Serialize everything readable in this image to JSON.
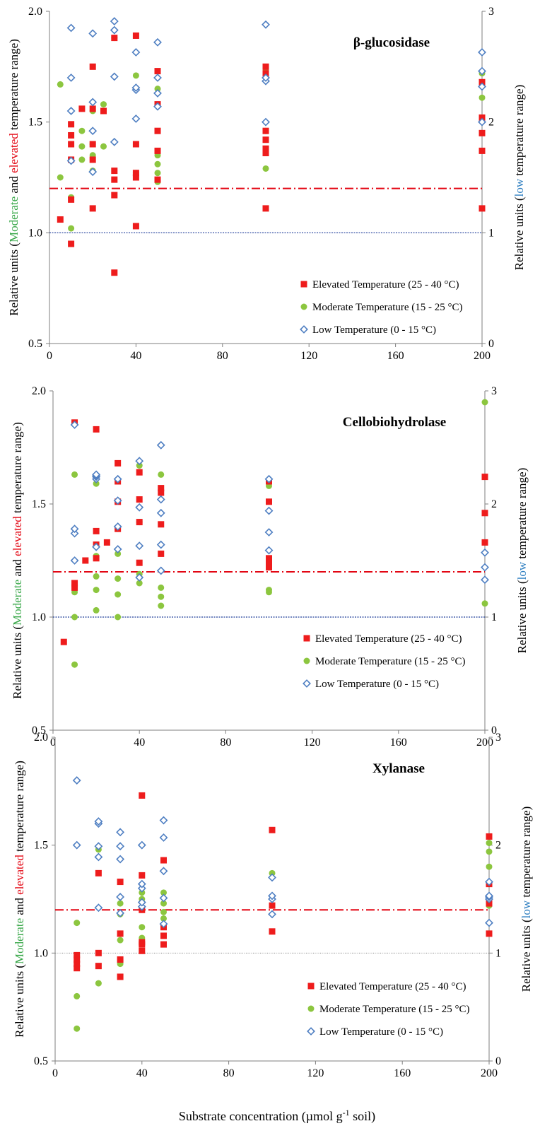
{
  "figure": {
    "xlabel": "Substrate concentration (µmol g⁻¹ soil)",
    "xlabel_main": "Substrate concentration (µmol g",
    "xlabel_sup": "-1",
    "xlabel_end": " soil)"
  },
  "colors": {
    "elevated": "#ee1c1c",
    "moderate": "#8cc63f",
    "low": "#4f7fc2",
    "threshold_line": "#e30613",
    "baseline_blue": "#1f3d99",
    "baseline_gray": "#888888"
  },
  "chart_data": [
    {
      "type": "scatter",
      "title": "β-glucosidase",
      "ylabel_left": [
        "Relative units (",
        "Moderate",
        " and ",
        "elevated",
        " temperature range)"
      ],
      "ylabel_right": [
        "Relative units (",
        "low",
        " temperature range)"
      ],
      "xlim": [
        0,
        200
      ],
      "ylim_left": [
        0.5,
        2.0
      ],
      "ylim_right": [
        0,
        3
      ],
      "x_ticks": [
        "0",
        "40",
        "80",
        "120",
        "160",
        "200"
      ],
      "y_ticks_left": [
        "0.5",
        "1.0",
        "1.5",
        "2.0"
      ],
      "y_ticks_right": [
        "0",
        "1",
        "2",
        "3"
      ],
      "threshold": 1.2,
      "baseline": 1.0,
      "baseline_style": "blue",
      "legend": [
        "Elevated Temperature  (25 - 40 °C)",
        "Moderate Temperature  (15 - 25 °C)",
        "Low Temperature (0 - 15 °C)"
      ],
      "legend_position": "bottom-right",
      "series": [
        {
          "key": "elevated",
          "axis": "left",
          "x": [
            5,
            10,
            10,
            10,
            10,
            10,
            10,
            15,
            20,
            20,
            20,
            20,
            20,
            25,
            30,
            30,
            30,
            30,
            30,
            40,
            40,
            40,
            40,
            40,
            50,
            50,
            50,
            50,
            50,
            100,
            100,
            100,
            100,
            100,
            100,
            100,
            200,
            200,
            200,
            200,
            200
          ],
          "y": [
            1.06,
            0.95,
            1.15,
            1.33,
            1.4,
            1.44,
            1.49,
            1.56,
            1.11,
            1.33,
            1.4,
            1.56,
            1.75,
            1.55,
            0.82,
            1.17,
            1.24,
            1.28,
            1.88,
            1.03,
            1.25,
            1.27,
            1.4,
            1.89,
            1.24,
            1.37,
            1.46,
            1.58,
            1.73,
            1.11,
            1.36,
            1.38,
            1.42,
            1.46,
            1.72,
            1.75,
            1.11,
            1.37,
            1.45,
            1.52,
            1.68
          ]
        },
        {
          "key": "moderate",
          "axis": "left",
          "x": [
            5,
            5,
            10,
            10,
            15,
            15,
            15,
            20,
            20,
            20,
            20,
            25,
            25,
            30,
            40,
            40,
            40,
            50,
            50,
            50,
            50,
            50,
            100,
            100,
            100,
            200,
            200
          ],
          "y": [
            1.25,
            1.67,
            1.02,
            1.16,
            1.33,
            1.39,
            1.46,
            1.28,
            1.35,
            1.4,
            1.55,
            1.39,
            1.58,
            1.88,
            1.27,
            1.65,
            1.71,
            1.23,
            1.27,
            1.31,
            1.35,
            1.65,
            1.29,
            1.46,
            1.73,
            1.61,
            1.72
          ]
        },
        {
          "key": "low",
          "axis": "right",
          "x": [
            10,
            10,
            10,
            10,
            20,
            20,
            20,
            20,
            30,
            30,
            30,
            30,
            40,
            40,
            40,
            40,
            50,
            50,
            50,
            50,
            100,
            100,
            100,
            100,
            200,
            200,
            200,
            200
          ],
          "y": [
            1.65,
            2.1,
            2.4,
            2.85,
            1.55,
            1.92,
            2.18,
            2.8,
            1.82,
            2.41,
            2.83,
            2.91,
            2.03,
            2.29,
            2.31,
            2.63,
            2.14,
            2.26,
            2.4,
            2.72,
            2.0,
            2.37,
            2.4,
            2.88,
            2.0,
            2.32,
            2.46,
            2.63
          ]
        }
      ]
    },
    {
      "type": "scatter",
      "title": "Cellobiohydrolase",
      "ylabel_left": [
        "Relative units (",
        "Moderate",
        " and ",
        "elevated",
        " temperature range)"
      ],
      "ylabel_right": [
        "Relative units (",
        "low",
        " temperature range)"
      ],
      "xlim": [
        0,
        200
      ],
      "ylim_left": [
        0.5,
        2.0
      ],
      "ylim_right": [
        0,
        3
      ],
      "x_ticks": [
        "0",
        "40",
        "80",
        "120",
        "160",
        "200"
      ],
      "y_ticks_left": [
        "0.5",
        "1.0",
        "1.5",
        "2.0"
      ],
      "y_ticks_right": [
        "0",
        "1",
        "2",
        "3"
      ],
      "threshold": 1.2,
      "baseline": 1.0,
      "baseline_style": "blue",
      "legend": [
        "Elevated Temperature  (25 - 40 °C)",
        "Moderate Temperature  (15 - 25 °C)",
        "Low Temperature (0 - 15 °C)"
      ],
      "legend_position": "bottom-right",
      "series": [
        {
          "key": "elevated",
          "axis": "left",
          "x": [
            5,
            10,
            10,
            10,
            15,
            20,
            20,
            20,
            20,
            25,
            30,
            30,
            30,
            30,
            40,
            40,
            40,
            40,
            50,
            50,
            50,
            50,
            100,
            100,
            100,
            100,
            100,
            100,
            200,
            200,
            200
          ],
          "y": [
            0.89,
            1.13,
            1.15,
            1.86,
            1.25,
            1.26,
            1.32,
            1.38,
            1.83,
            1.33,
            1.39,
            1.51,
            1.6,
            1.68,
            1.24,
            1.42,
            1.52,
            1.64,
            1.28,
            1.41,
            1.55,
            1.57,
            1.22,
            1.24,
            1.25,
            1.26,
            1.51,
            1.6,
            1.33,
            1.46,
            1.62
          ]
        },
        {
          "key": "moderate",
          "axis": "left",
          "x": [
            10,
            10,
            10,
            10,
            20,
            20,
            20,
            20,
            20,
            30,
            30,
            30,
            30,
            40,
            40,
            40,
            40,
            50,
            50,
            50,
            50,
            100,
            100,
            100,
            200,
            200
          ],
          "y": [
            0.79,
            1.0,
            1.11,
            1.63,
            1.03,
            1.12,
            1.18,
            1.27,
            1.59,
            1.0,
            1.1,
            1.17,
            1.28,
            1.15,
            1.19,
            1.42,
            1.67,
            1.05,
            1.09,
            1.13,
            1.63,
            1.11,
            1.12,
            1.58,
            1.06,
            1.95
          ]
        },
        {
          "key": "low",
          "axis": "right",
          "x": [
            10,
            10,
            10,
            10,
            20,
            20,
            20,
            20,
            20,
            30,
            30,
            30,
            30,
            40,
            40,
            40,
            40,
            50,
            50,
            50,
            50,
            50,
            100,
            100,
            100,
            100,
            200,
            200,
            200
          ],
          "y": [
            1.5,
            1.74,
            1.78,
            2.7,
            1.62,
            2.22,
            2.24,
            2.25,
            2.26,
            1.6,
            1.8,
            2.03,
            2.22,
            1.35,
            1.63,
            1.97,
            2.38,
            1.41,
            1.64,
            1.92,
            2.04,
            2.52,
            1.59,
            1.75,
            1.94,
            2.22,
            1.33,
            1.44,
            1.57
          ]
        }
      ]
    },
    {
      "type": "scatter",
      "title": "Xylanase",
      "ylabel_left": [
        "Relative units (",
        "Moderate",
        " and ",
        "elevated",
        " temperature range)"
      ],
      "ylabel_right": [
        "Relative units (",
        "low",
        "  temperature range)"
      ],
      "xlim": [
        0,
        200
      ],
      "ylim_left": [
        0.5,
        2.0
      ],
      "ylim_right": [
        0,
        3
      ],
      "x_ticks": [
        "0",
        "40",
        "80",
        "120",
        "160",
        "200"
      ],
      "y_ticks_left": [
        "0.5",
        "1.0",
        "1.5",
        "2.0"
      ],
      "y_ticks_right": [
        "0",
        "1",
        "2",
        "3"
      ],
      "threshold": 1.2,
      "baseline": 1.0,
      "baseline_style": "gray",
      "legend": [
        "Elevated Temperature  (25 - 40 °C)",
        "Moderate Temperature  (15 - 25 °C)",
        "Low Temperature (0 - 15 °C)"
      ],
      "legend_position": "bottom-right",
      "series": [
        {
          "key": "elevated",
          "axis": "left",
          "x": [
            10,
            10,
            10,
            10,
            20,
            20,
            20,
            30,
            30,
            30,
            30,
            40,
            40,
            40,
            40,
            40,
            40,
            50,
            50,
            50,
            50,
            100,
            100,
            100,
            200,
            200,
            200,
            200
          ],
          "y": [
            0.93,
            0.95,
            0.97,
            0.99,
            0.94,
            1.0,
            1.37,
            0.89,
            0.97,
            1.09,
            1.33,
            1.01,
            1.04,
            1.05,
            1.2,
            1.36,
            1.73,
            1.04,
            1.08,
            1.12,
            1.43,
            1.1,
            1.22,
            1.57,
            1.09,
            1.23,
            1.32,
            1.54
          ]
        },
        {
          "key": "moderate",
          "axis": "left",
          "x": [
            10,
            10,
            10,
            10,
            20,
            20,
            30,
            30,
            30,
            30,
            40,
            40,
            40,
            40,
            50,
            50,
            50,
            50,
            100,
            200,
            200,
            200,
            200
          ],
          "y": [
            0.65,
            0.8,
            0.99,
            1.14,
            0.86,
            1.48,
            0.95,
            1.06,
            1.18,
            1.23,
            1.07,
            1.12,
            1.25,
            1.28,
            1.16,
            1.19,
            1.23,
            1.28,
            1.37,
            1.22,
            1.4,
            1.47,
            1.51
          ]
        },
        {
          "key": "low",
          "axis": "right",
          "x": [
            10,
            10,
            20,
            20,
            20,
            20,
            20,
            30,
            30,
            30,
            30,
            30,
            40,
            40,
            40,
            40,
            40,
            50,
            50,
            50,
            50,
            50,
            100,
            100,
            100,
            100,
            200,
            200,
            200,
            200,
            200
          ],
          "y": [
            2.0,
            2.6,
            1.42,
            1.89,
            1.99,
            2.2,
            2.22,
            1.37,
            1.52,
            1.87,
            1.99,
            2.12,
            1.43,
            1.47,
            1.6,
            1.64,
            2.0,
            1.27,
            1.51,
            1.76,
            2.07,
            2.23,
            1.36,
            1.5,
            1.53,
            1.7,
            1.28,
            1.5,
            1.52,
            1.53,
            1.66
          ]
        }
      ]
    }
  ]
}
